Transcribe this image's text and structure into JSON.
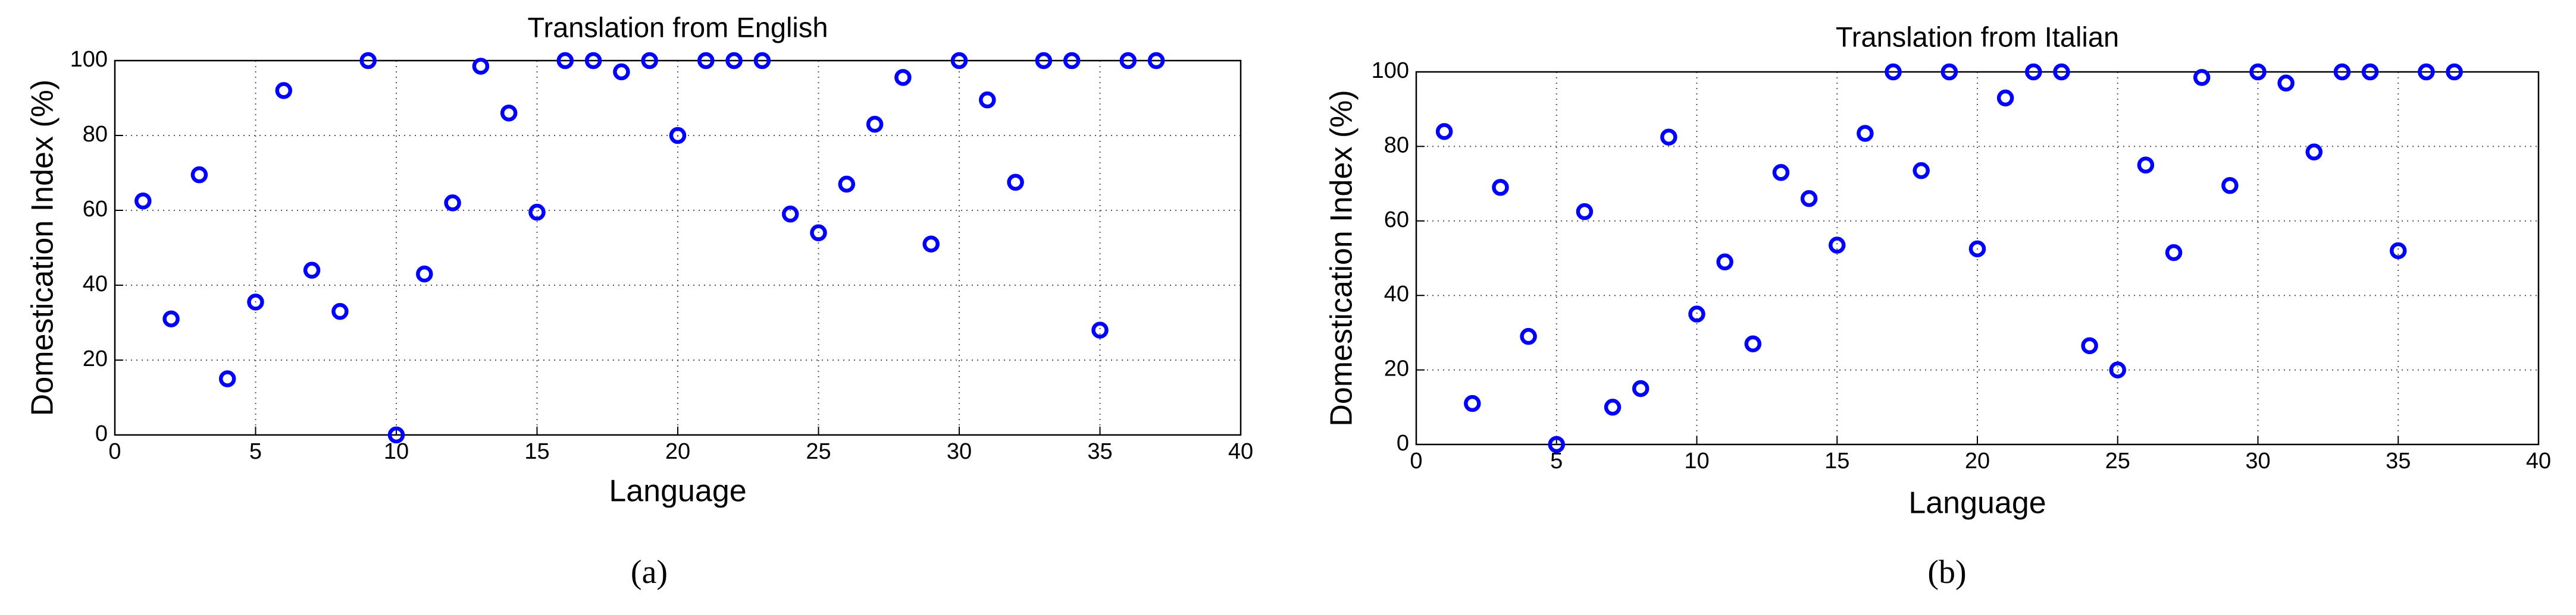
{
  "chart_data": [
    {
      "type": "scatter",
      "title": "Translation from English",
      "x_label": "Language",
      "y_label": "Domestication Index (%)",
      "caption": "(a)",
      "color": "#0000ff",
      "grid": true,
      "x": [
        1,
        2,
        3,
        4,
        5,
        6,
        7,
        8,
        9,
        10,
        11,
        12,
        13,
        14,
        15,
        16,
        17,
        18,
        19,
        20,
        21,
        22,
        23,
        24,
        25,
        26,
        27,
        28,
        29,
        30,
        31,
        32,
        33,
        34,
        35,
        36,
        37
      ],
      "values": [
        62.5,
        31,
        69.5,
        15,
        35.5,
        92,
        44,
        33,
        100,
        0,
        43,
        62,
        98.5,
        86,
        59.5,
        100,
        100,
        97,
        100,
        80,
        100,
        100,
        100,
        59,
        54,
        67,
        83,
        95.5,
        51,
        100,
        89.5,
        67.5,
        100,
        100,
        28,
        100,
        100
      ],
      "xlim": [
        0,
        40
      ],
      "xticks": [
        0,
        5,
        10,
        15,
        20,
        25,
        30,
        35,
        40
      ],
      "ylim": [
        0,
        100
      ],
      "yticks": [
        0,
        20,
        40,
        60,
        80,
        100
      ]
    },
    {
      "type": "scatter",
      "title": "Translation from Italian",
      "x_label": "Language",
      "y_label": "Domestication Index (%)",
      "caption": "(b)",
      "color": "#0000ff",
      "grid": true,
      "x": [
        1,
        2,
        3,
        4,
        5,
        6,
        7,
        8,
        9,
        10,
        11,
        12,
        13,
        14,
        15,
        16,
        17,
        18,
        19,
        20,
        21,
        22,
        23,
        24,
        25,
        26,
        27,
        28,
        29,
        30,
        31,
        32,
        33,
        34,
        35,
        36,
        37
      ],
      "values": [
        84,
        11,
        69,
        29,
        0,
        62.5,
        10,
        15,
        82.5,
        35,
        49,
        27,
        73,
        66,
        53.5,
        83.5,
        100,
        73.5,
        100,
        52.5,
        93,
        100,
        100,
        26.5,
        20,
        75,
        51.5,
        98.5,
        69.5,
        100,
        97,
        78.5,
        100,
        100,
        52,
        100,
        100
      ],
      "xlim": [
        0,
        40
      ],
      "xticks": [
        0,
        5,
        10,
        15,
        20,
        25,
        30,
        35,
        40
      ],
      "ylim": [
        0,
        100
      ],
      "yticks": [
        0,
        20,
        40,
        60,
        80,
        100
      ]
    }
  ]
}
